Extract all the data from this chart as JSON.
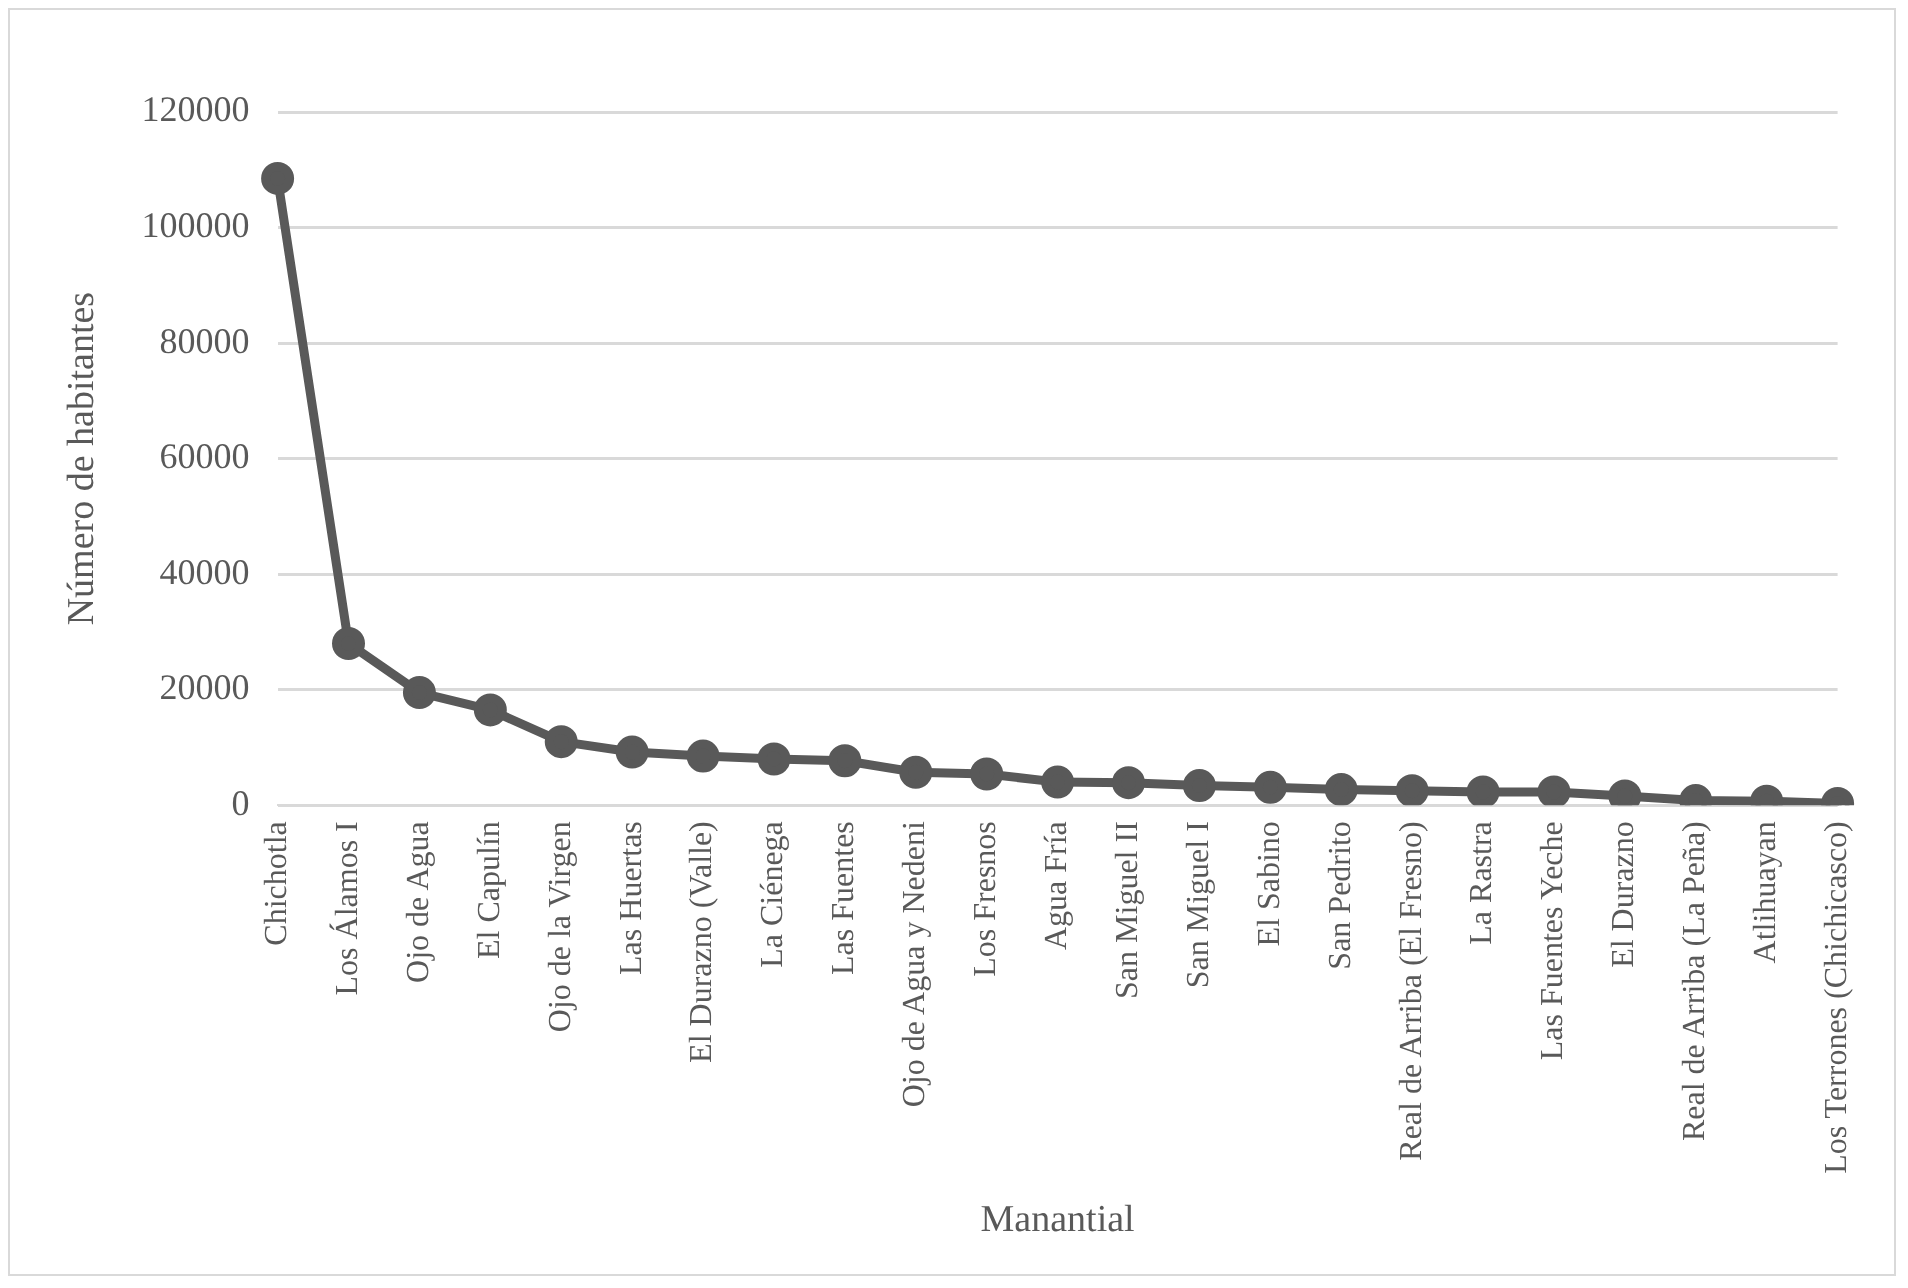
{
  "chart_data": {
    "type": "line",
    "xlabel": "Manantial",
    "ylabel": "Número de habitantes",
    "categories": [
      "Chichotla",
      "Los Álamos I",
      "Ojo de Agua",
      "El Capulín",
      "Ojo de la Virgen",
      "Las Huertas",
      "El Durazno (Valle)",
      "La Ciénega",
      "Las Fuentes",
      "Ojo de Agua y Nedeni",
      "Los Fresnos",
      "Agua Fría",
      "San Miguel II",
      "San Miguel I",
      "El Sabino",
      "San Pedrito",
      "Real de Arriba (El Fresno)",
      "La Rastra",
      "Las Fuentes Yeche",
      "El Durazno",
      "Real de Arriba (La Peña)",
      "Atlihuayan",
      "Los Terrones (Chichicasco)"
    ],
    "series": [
      {
        "color": "#595959",
        "values": [
          108500,
          28000,
          19500,
          16500,
          11000,
          9200,
          8500,
          8000,
          7700,
          5700,
          5400,
          4000,
          3900,
          3400,
          3100,
          2700,
          2500,
          2300,
          2300,
          1600,
          800,
          700,
          300
        ]
      }
    ],
    "ylim": [
      0,
      120000
    ],
    "yticks": [
      0,
      20000,
      40000,
      60000,
      80000,
      100000,
      120000
    ],
    "grid": "y",
    "legend": false,
    "marker": "circle",
    "line_style": "solid"
  }
}
